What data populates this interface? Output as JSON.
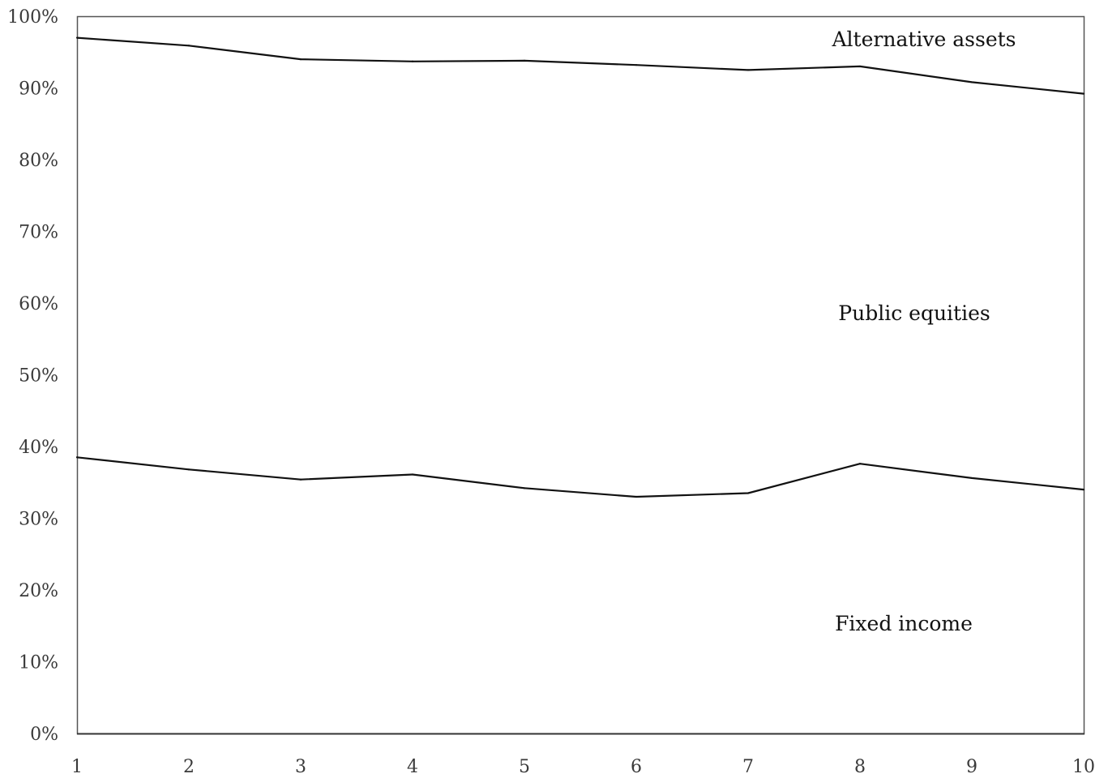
{
  "chart_data": {
    "type": "area",
    "stacked": true,
    "x": [
      1,
      2,
      3,
      4,
      5,
      6,
      7,
      8,
      9,
      10
    ],
    "x_tick_labels": [
      "1",
      "2",
      "3",
      "4",
      "5",
      "6",
      "7",
      "8",
      "9",
      "10"
    ],
    "y_tick_labels": [
      "0%",
      "10%",
      "20%",
      "30%",
      "40%",
      "50%",
      "60%",
      "70%",
      "80%",
      "90%",
      "100%"
    ],
    "ylim": [
      0,
      100
    ],
    "y_unit": "%",
    "grid": false,
    "legend": "none",
    "boundaries": [
      {
        "between": "Fixed income / Public equities",
        "values": [
          38.5,
          36.8,
          35.4,
          36.1,
          34.2,
          33.0,
          33.5,
          37.6,
          35.6,
          34.0
        ]
      },
      {
        "between": "Public equities / Alternative assets",
        "values": [
          97.0,
          95.9,
          94.0,
          93.7,
          93.8,
          93.2,
          92.5,
          93.0,
          90.8,
          89.2
        ]
      }
    ],
    "series": [
      {
        "name": "Fixed income",
        "values": [
          38.5,
          36.8,
          35.4,
          36.1,
          34.2,
          33.0,
          33.5,
          37.6,
          35.6,
          34.0
        ]
      },
      {
        "name": "Public equities",
        "values": [
          58.5,
          59.1,
          58.6,
          57.6,
          59.6,
          60.2,
          59.0,
          55.4,
          55.2,
          55.2
        ]
      },
      {
        "name": "Alternative assets",
        "values": [
          3.0,
          4.1,
          6.0,
          6.3,
          6.2,
          6.8,
          7.5,
          7.0,
          9.2,
          10.8
        ]
      }
    ],
    "region_labels": {
      "fixed_income": "Fixed income",
      "public_equities": "Public equities",
      "alternative_assets": "Alternative assets"
    },
    "title": "",
    "xlabel": "",
    "ylabel": ""
  }
}
